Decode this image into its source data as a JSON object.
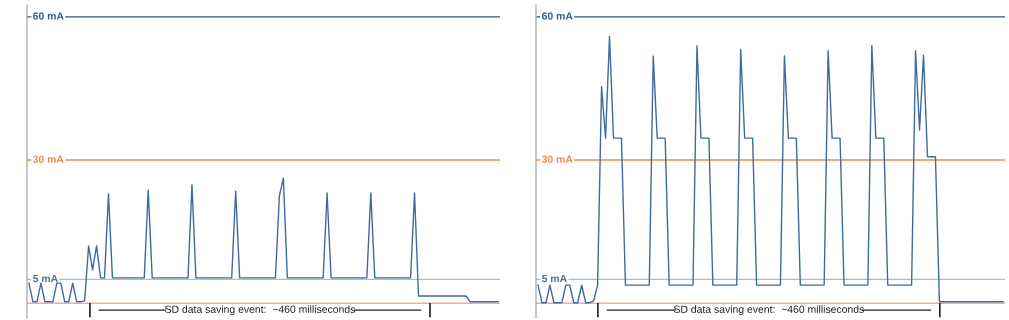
{
  "chart_data": [
    {
      "type": "line",
      "ylim": [
        -3.1,
        62.5
      ],
      "categories": [
        null,
        null,
        null,
        null,
        null,
        null,
        null,
        null,
        null,
        null,
        null,
        null,
        null,
        null,
        null,
        null,
        null,
        null,
        null,
        null,
        null,
        null,
        null,
        null,
        null,
        null,
        null,
        null,
        null,
        null,
        null,
        null,
        null,
        null,
        null,
        null,
        null,
        null,
        null,
        null,
        null,
        null,
        null,
        null,
        null,
        null,
        null,
        null,
        null,
        null,
        null,
        null,
        null,
        null,
        null,
        null,
        null,
        null,
        null,
        null,
        null,
        null,
        null,
        null,
        null,
        null,
        null,
        null,
        null,
        null,
        null,
        null,
        null,
        null,
        null,
        null,
        null,
        null,
        null,
        null,
        null,
        null,
        null,
        null,
        null,
        null,
        null,
        null,
        null,
        null,
        null,
        null,
        null,
        null,
        null,
        null,
        null,
        null,
        null,
        null,
        null,
        null,
        null,
        null,
        null,
        null,
        null,
        null,
        null,
        null,
        null,
        null,
        null,
        null,
        null,
        null,
        null,
        null,
        null
      ],
      "series": [
        {
          "color": "#3f6aa0",
          "values": [
            4.2,
            0.3,
            0.3,
            4.2,
            0.3,
            0.3,
            0.3,
            4.2,
            4.2,
            0.3,
            0.3,
            4.2,
            0.3,
            0.3,
            0.5,
            12.0,
            7.0,
            12.0,
            5.3,
            5.3,
            22.9,
            5.3,
            5.3,
            5.3,
            5.3,
            5.3,
            5.3,
            5.3,
            5.3,
            5.3,
            23.7,
            5.3,
            5.3,
            5.3,
            5.3,
            5.3,
            5.3,
            5.3,
            5.3,
            5.3,
            5.3,
            24.8,
            5.3,
            5.3,
            5.3,
            5.3,
            5.3,
            5.3,
            5.3,
            5.3,
            5.3,
            5.3,
            23.5,
            5.3,
            5.3,
            5.3,
            5.3,
            5.3,
            5.3,
            5.3,
            5.3,
            5.3,
            5.3,
            22.5,
            26.2,
            5.3,
            5.3,
            5.3,
            5.3,
            5.3,
            5.3,
            5.3,
            5.3,
            5.3,
            5.3,
            23.1,
            5.3,
            5.3,
            5.3,
            5.3,
            5.3,
            5.3,
            5.3,
            5.3,
            5.3,
            5.3,
            23.1,
            5.3,
            5.3,
            5.3,
            5.3,
            5.3,
            5.3,
            5.3,
            5.3,
            5.3,
            5.3,
            23.1,
            1.5,
            1.5,
            1.5,
            1.5,
            1.5,
            1.5,
            1.5,
            1.5,
            1.5,
            1.5,
            1.5,
            1.5,
            1.5,
            0.3,
            0.3,
            0.3,
            0.3,
            0.3,
            0.3,
            0.3,
            0.3
          ]
        }
      ],
      "ref_lines": [
        {
          "axis": "y",
          "value": 60,
          "label": "60 mA",
          "color": "#2e5a8c"
        },
        {
          "axis": "y",
          "value": 30,
          "label": "30 mA",
          "color": "#f08a4b"
        },
        {
          "axis": "y",
          "value": 5,
          "label": "5 mA",
          "color": "#9cc3d9"
        },
        {
          "axis": "y",
          "value": 0,
          "color": "#f5b08a"
        }
      ],
      "annotations": [
        "SD data saving event:  ~460 milliseconds"
      ]
    },
    {
      "type": "line",
      "ylim": [
        -3.1,
        62.5
      ],
      "categories": [
        null,
        null,
        null,
        null,
        null,
        null,
        null,
        null,
        null,
        null,
        null,
        null,
        null,
        null,
        null,
        null,
        null,
        null,
        null,
        null,
        null,
        null,
        null,
        null,
        null,
        null,
        null,
        null,
        null,
        null,
        null,
        null,
        null,
        null,
        null,
        null,
        null,
        null,
        null,
        null,
        null,
        null,
        null,
        null,
        null,
        null,
        null,
        null,
        null,
        null,
        null,
        null,
        null,
        null,
        null,
        null,
        null,
        null,
        null,
        null,
        null,
        null,
        null,
        null,
        null,
        null,
        null,
        null,
        null,
        null,
        null,
        null,
        null,
        null,
        null,
        null,
        null,
        null,
        null,
        null,
        null,
        null,
        null,
        null,
        null,
        null,
        null,
        null,
        null,
        null,
        null,
        null,
        null,
        null,
        null,
        null,
        null,
        null,
        null,
        null,
        null,
        null,
        null,
        null,
        null,
        null,
        null,
        null,
        null,
        null,
        null,
        null,
        null,
        null,
        null,
        null,
        null,
        null
      ],
      "series": [
        {
          "color": "#3f6aa0",
          "values": [
            3.8,
            0.1,
            0.1,
            3.8,
            0.1,
            0.1,
            0.1,
            3.8,
            3.8,
            0.1,
            0.1,
            3.8,
            0.1,
            0.1,
            0.5,
            3.8,
            45.4,
            34.6,
            55.9,
            34.6,
            34.6,
            34.6,
            3.8,
            3.8,
            3.8,
            3.8,
            3.8,
            3.8,
            3.8,
            51.8,
            34.6,
            34.6,
            34.6,
            3.8,
            3.8,
            3.8,
            3.8,
            3.8,
            3.8,
            3.8,
            53.9,
            34.6,
            34.6,
            34.6,
            3.8,
            3.8,
            3.8,
            3.8,
            3.8,
            3.8,
            3.8,
            53.2,
            34.6,
            34.6,
            34.6,
            3.8,
            3.8,
            3.8,
            3.8,
            3.8,
            3.8,
            3.8,
            51.8,
            34.6,
            34.6,
            34.6,
            3.8,
            3.8,
            3.8,
            3.8,
            3.8,
            3.8,
            3.8,
            52.9,
            34.6,
            34.6,
            34.6,
            3.8,
            3.8,
            3.8,
            3.8,
            3.8,
            3.8,
            3.8,
            54.0,
            34.6,
            34.6,
            34.6,
            3.8,
            3.8,
            3.8,
            3.8,
            3.8,
            3.8,
            3.8,
            52.9,
            36.3,
            52.0,
            30.7,
            30.7,
            30.7,
            0.3,
            0.3,
            0.3,
            0.3,
            0.3,
            0.3,
            0.3,
            0.3,
            0.3,
            0.3,
            0.3,
            0.3,
            0.3,
            0.3,
            0.3,
            0.3,
            0.3
          ]
        }
      ],
      "ref_lines": [
        {
          "axis": "y",
          "value": 60,
          "label": "60 mA",
          "color": "#2e5a8c"
        },
        {
          "axis": "y",
          "value": 30,
          "label": "30 mA",
          "color": "#f08a4b"
        },
        {
          "axis": "y",
          "value": 5,
          "label": "5 mA",
          "color": "#9cc3d9"
        },
        {
          "axis": "y",
          "value": 0,
          "color": "#f5b08a"
        }
      ],
      "annotations": [
        "SD data saving event:  ~460 milliseconds"
      ]
    }
  ]
}
